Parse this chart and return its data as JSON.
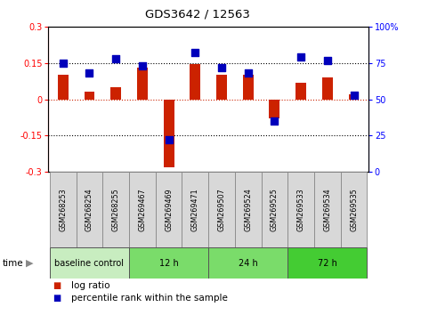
{
  "title": "GDS3642 / 12563",
  "samples": [
    "GSM268253",
    "GSM268254",
    "GSM268255",
    "GSM269467",
    "GSM269469",
    "GSM269471",
    "GSM269507",
    "GSM269524",
    "GSM269525",
    "GSM269533",
    "GSM269534",
    "GSM269535"
  ],
  "log_ratio": [
    0.1,
    0.03,
    0.05,
    0.13,
    -0.28,
    0.145,
    0.1,
    0.1,
    -0.08,
    0.07,
    0.09,
    0.02
  ],
  "percentile_rank": [
    75,
    68,
    78,
    73,
    22,
    82,
    72,
    68,
    35,
    79,
    77,
    53
  ],
  "ylim_left": [
    -0.3,
    0.3
  ],
  "ylim_right": [
    0,
    100
  ],
  "bar_color": "#cc2200",
  "dot_color": "#0000bb",
  "groups": [
    {
      "label": "baseline control",
      "start": 0,
      "end": 3,
      "color": "#c8edc0"
    },
    {
      "label": "12 h",
      "start": 3,
      "end": 6,
      "color": "#7adc6a"
    },
    {
      "label": "24 h",
      "start": 6,
      "end": 9,
      "color": "#7adc6a"
    },
    {
      "label": "72 h",
      "start": 9,
      "end": 12,
      "color": "#44cc33"
    }
  ],
  "time_label": "time",
  "legend_logratio": "log ratio",
  "legend_percentile": "percentile rank within the sample",
  "bar_width": 0.4,
  "dot_size": 28
}
